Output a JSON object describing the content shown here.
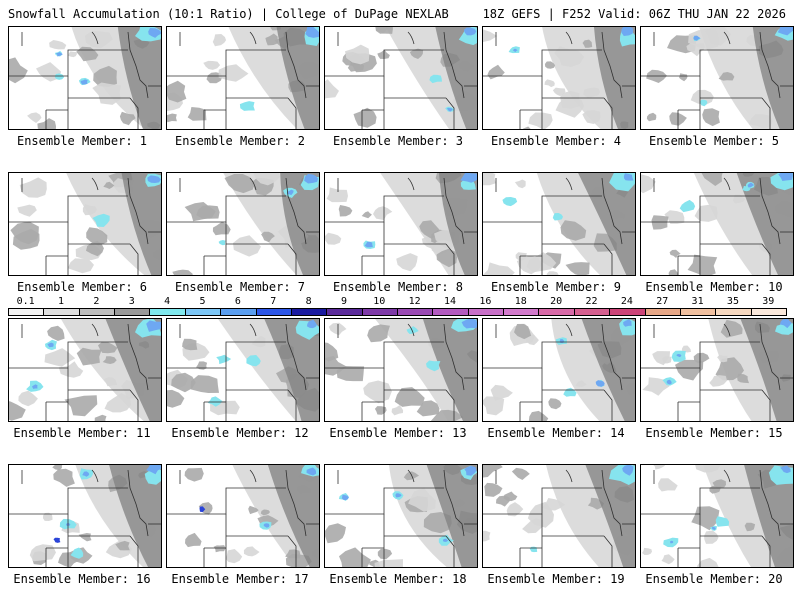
{
  "header": {
    "left": "Snowfall Accumulation (10:1 Ratio) | College of DuPage NEXLAB",
    "right": "18Z GEFS | F252 Valid: 06Z THU JAN 22 2026"
  },
  "legend": {
    "levels": [
      "0.1",
      "1",
      "2",
      "3",
      "4",
      "5",
      "6",
      "7",
      "8",
      "9",
      "10",
      "12",
      "14",
      "16",
      "18",
      "20",
      "22",
      "24",
      "27",
      "31",
      "35",
      "39"
    ],
    "colors": [
      "#f2f2f2",
      "#dedede",
      "#bebebe",
      "#9a9a9a",
      "#80e8ee",
      "#7cc6f6",
      "#5a9ef0",
      "#2c56e8",
      "#1a1aa0",
      "#5a2a9a",
      "#7e3aa8",
      "#9a4ab4",
      "#b25ac0",
      "#c870c8",
      "#d27acc",
      "#d86aa8",
      "#d66090",
      "#cc4478",
      "#e8a888",
      "#f0c0a0",
      "#f6d8c0",
      "#fbe9dc"
    ]
  },
  "panels": [
    {
      "label": "Ensemble Member: 1"
    },
    {
      "label": "Ensemble Member: 2"
    },
    {
      "label": "Ensemble Member: 3"
    },
    {
      "label": "Ensemble Member: 4"
    },
    {
      "label": "Ensemble Member: 5"
    },
    {
      "label": "Ensemble Member: 6"
    },
    {
      "label": "Ensemble Member: 7"
    },
    {
      "label": "Ensemble Member: 8"
    },
    {
      "label": "Ensemble Member: 9"
    },
    {
      "label": "Ensemble Member: 10"
    },
    {
      "label": "Ensemble Member: 11"
    },
    {
      "label": "Ensemble Member: 12"
    },
    {
      "label": "Ensemble Member: 13"
    },
    {
      "label": "Ensemble Member: 14"
    },
    {
      "label": "Ensemble Member: 15"
    },
    {
      "label": "Ensemble Member: 16"
    },
    {
      "label": "Ensemble Member: 17"
    },
    {
      "label": "Ensemble Member: 18"
    },
    {
      "label": "Ensemble Member: 19"
    },
    {
      "label": "Ensemble Member: 20"
    }
  ],
  "map_colors": {
    "frame": "#000000",
    "state_line": "#303030",
    "snow_light": "#d6d6d6",
    "snow_mid": "#aaaaaa",
    "snow_dark": "#808080",
    "snow_cyan": "#86e4ee",
    "snow_blue": "#6ea8f2",
    "snow_deep": "#2a44d8"
  }
}
